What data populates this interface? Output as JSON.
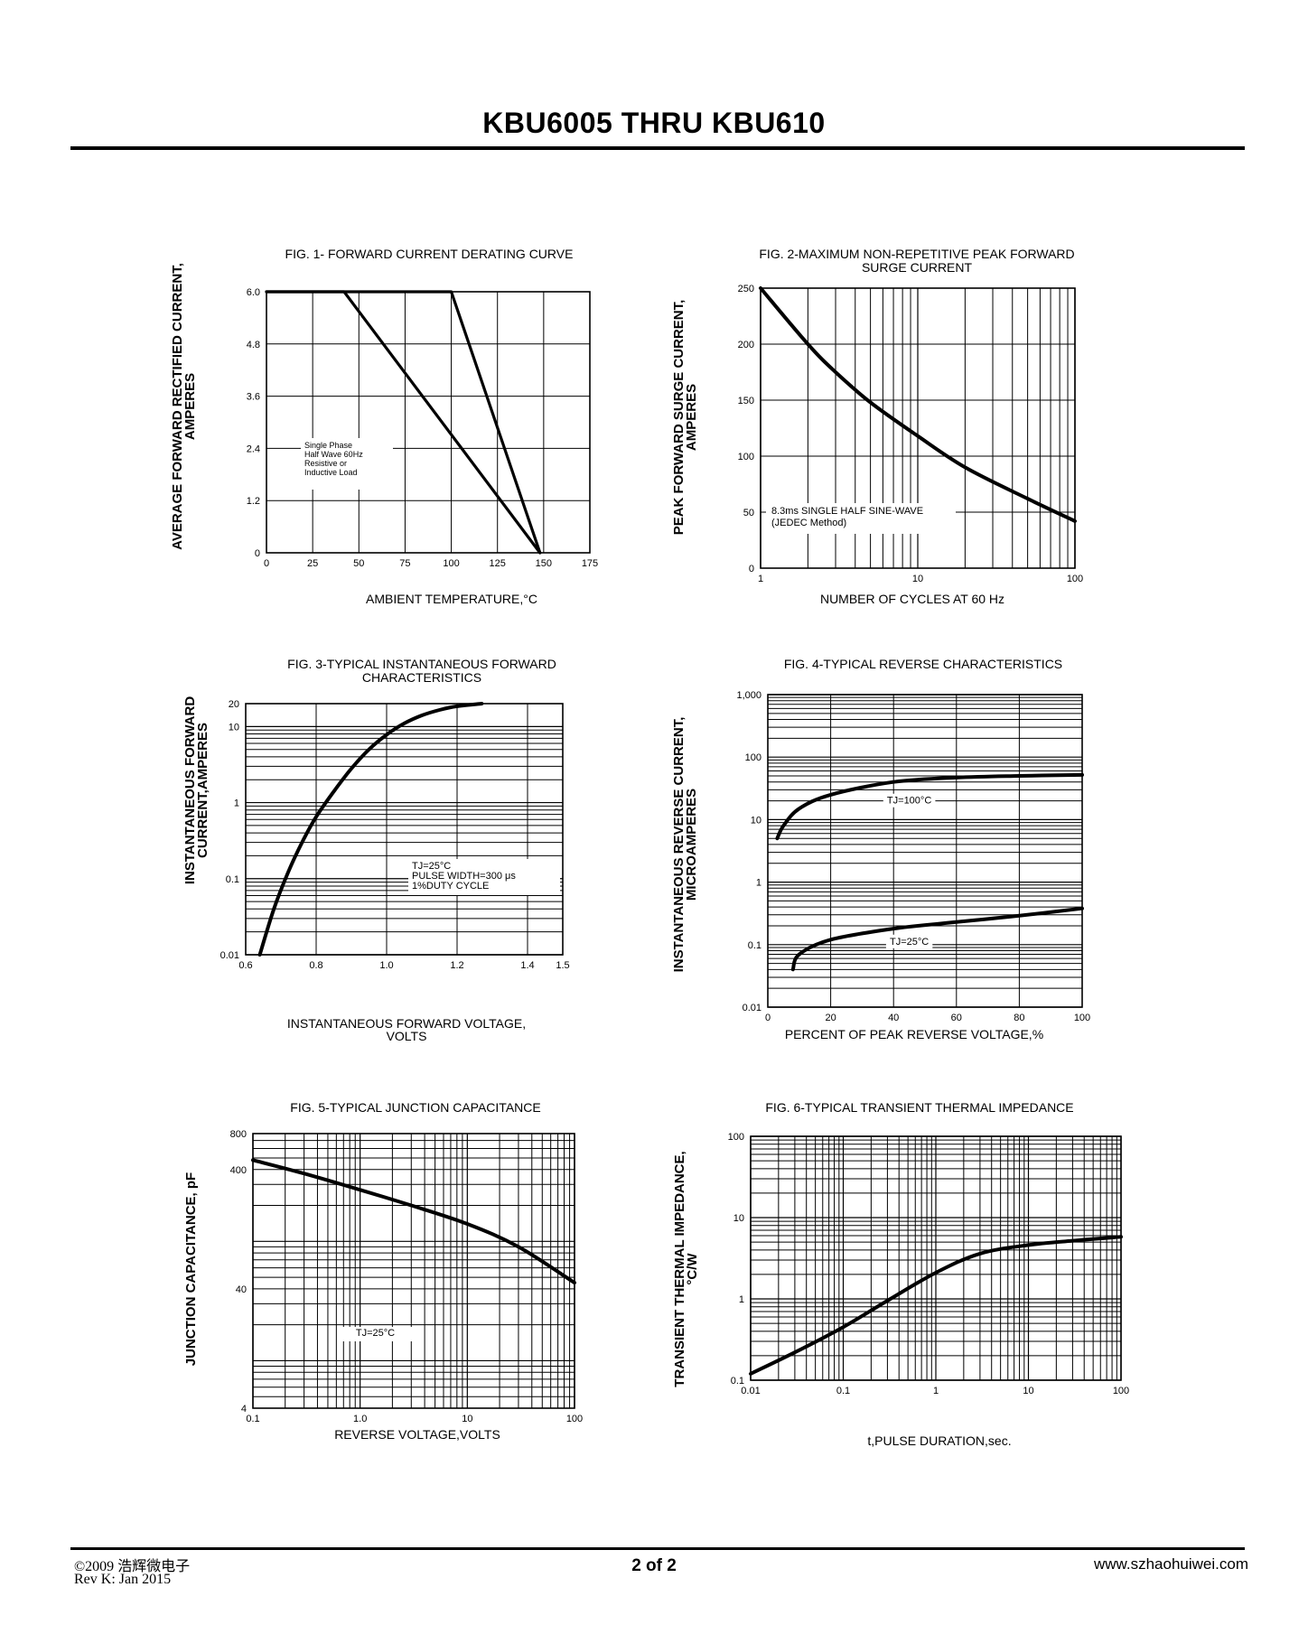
{
  "page": {
    "title": "KBU6005 THRU KBU610",
    "footer": {
      "copyright": "©2009 浩辉微电子",
      "revision": "Rev K:  Jan  2015",
      "page_number": "2  of  2",
      "website": "www.szhaohuiwei.com"
    }
  },
  "chart_data": [
    {
      "id": "fig1",
      "type": "line",
      "title": "FIG. 1- FORWARD CURRENT DERATING CURVE",
      "xlabel": "AMBIENT TEMPERATURE,°C",
      "ylabel": [
        "AVERAGE FORWARD RECTIFIED CURRENT,",
        "AMPERES"
      ],
      "x_scale": "linear",
      "y_scale": "linear",
      "xlim": [
        0,
        175
      ],
      "ylim": [
        0,
        6.0
      ],
      "xticks": [
        0,
        25,
        50,
        75,
        100,
        125,
        150,
        175
      ],
      "xticklabels": [
        "0",
        "25",
        "50",
        "75",
        "100",
        "125",
        "150",
        "175"
      ],
      "yticks": [
        0,
        1.2,
        2.4,
        3.6,
        4.8,
        6.0
      ],
      "yticklabels": [
        "0",
        "1.2",
        "2.4",
        "3.6",
        "4.8",
        "6.0"
      ],
      "annotation": [
        "Single Phase",
        "Half Wave 60Hz",
        "Resistive or",
        "Inductive Load"
      ],
      "series": [
        {
          "x": [
            0,
            42,
            148
          ],
          "y": [
            6.0,
            6.0,
            0
          ]
        },
        {
          "x": [
            0,
            100,
            148
          ],
          "y": [
            6.0,
            6.0,
            0
          ]
        }
      ]
    },
    {
      "id": "fig2",
      "type": "line",
      "title": [
        "FIG. 2-MAXIMUM NON-REPETITIVE PEAK FORWARD",
        "SURGE CURRENT"
      ],
      "xlabel": "NUMBER OF CYCLES AT 60 Hz",
      "ylabel": [
        "PEAK  FORWARD SURGE CURRENT,",
        "AMPERES"
      ],
      "x_scale": "log",
      "y_scale": "linear",
      "xlim": [
        1,
        100
      ],
      "ylim": [
        0,
        250
      ],
      "xticks": [
        1,
        10,
        100
      ],
      "xticklabels": [
        "1",
        "10",
        "100"
      ],
      "yticks": [
        0,
        50,
        100,
        150,
        200,
        250
      ],
      "yticklabels": [
        "0",
        "50",
        "100",
        "150",
        "200",
        "250"
      ],
      "annotation": [
        "8.3ms SINGLE HALF SINE-WAVE",
        "(JEDEC Method)"
      ],
      "series": [
        {
          "x": [
            1,
            2,
            3,
            5,
            10,
            20,
            50,
            100
          ],
          "y": [
            250,
            200,
            175,
            148,
            118,
            90,
            62,
            42
          ]
        }
      ]
    },
    {
      "id": "fig3",
      "type": "line",
      "title": [
        "FIG. 3-TYPICAL INSTANTANEOUS FORWARD",
        "CHARACTERISTICS"
      ],
      "xlabel": [
        "INSTANTANEOUS FORWARD VOLTAGE,",
        "VOLTS"
      ],
      "ylabel": [
        "INSTANTANEOUS FORWARD",
        "CURRENT,AMPERES"
      ],
      "x_scale": "linear",
      "y_scale": "log",
      "xlim": [
        0.6,
        1.5
      ],
      "ylim": [
        0.01,
        20
      ],
      "xticks": [
        0.6,
        0.8,
        1.0,
        1.2,
        1.4,
        1.5
      ],
      "xticklabels": [
        "0.6",
        "0.8",
        "1.0",
        "1.2",
        "1.4",
        "1.5"
      ],
      "yticks": [
        0.01,
        0.1,
        1,
        10,
        20
      ],
      "yticklabels": [
        "0.01",
        "0.1",
        "1",
        "10",
        "20"
      ],
      "annotation": [
        "TJ=25°C",
        "PULSE WIDTH=300 μs",
        "1%DUTY CYCLE"
      ],
      "series": [
        {
          "x": [
            0.64,
            0.68,
            0.72,
            0.76,
            0.8,
            0.85,
            0.9,
            0.95,
            1.0,
            1.05,
            1.1,
            1.15,
            1.2,
            1.27
          ],
          "y": [
            0.01,
            0.04,
            0.12,
            0.3,
            0.65,
            1.4,
            2.8,
            5,
            7.8,
            11,
            14,
            16.5,
            18.5,
            20
          ]
        }
      ]
    },
    {
      "id": "fig4",
      "type": "line",
      "title": "FIG. 4-TYPICAL REVERSE CHARACTERISTICS",
      "xlabel": "PERCENT OF PEAK REVERSE VOLTAGE,%",
      "ylabel": [
        "INSTANTANEOUS REVERSE CURRENT,",
        "MICROAMPERES"
      ],
      "x_scale": "linear",
      "y_scale": "log",
      "xlim": [
        0,
        100
      ],
      "ylim": [
        0.01,
        1000
      ],
      "xticks": [
        0,
        20,
        40,
        60,
        80,
        100
      ],
      "xticklabels": [
        "0",
        "20",
        "40",
        "60",
        "80",
        "100"
      ],
      "yticks": [
        0.01,
        0.1,
        1,
        10,
        100,
        1000
      ],
      "yticklabels": [
        "0.01",
        "0.1",
        "1",
        "10",
        "100",
        "1,000"
      ],
      "series": [
        {
          "name": "TJ=100°C",
          "x": [
            3,
            5,
            10,
            20,
            40,
            60,
            80,
            100
          ],
          "y": [
            5,
            8,
            15,
            25,
            40,
            47,
            50,
            52
          ]
        },
        {
          "name": "TJ=25°C",
          "x": [
            8,
            10,
            20,
            40,
            60,
            80,
            100
          ],
          "y": [
            0.04,
            0.07,
            0.12,
            0.18,
            0.23,
            0.29,
            0.38
          ]
        }
      ]
    },
    {
      "id": "fig5",
      "type": "line",
      "title": "FIG. 5-TYPICAL JUNCTION CAPACITANCE",
      "xlabel": "REVERSE VOLTAGE,VOLTS",
      "ylabel": "JUNCTION CAPACITANCE, pF",
      "x_scale": "log",
      "y_scale": "log",
      "xlim": [
        0.1,
        100
      ],
      "ylim": [
        4,
        800
      ],
      "xticks": [
        0.1,
        1,
        10,
        100
      ],
      "xticklabels": [
        "0.1",
        "1.0",
        "10",
        "100"
      ],
      "yticks": [
        4,
        40,
        400,
        800
      ],
      "yticklabels": [
        "4",
        "40",
        "400",
        "800"
      ],
      "annotation": "TJ=25°C",
      "series": [
        {
          "x": [
            0.1,
            0.3,
            1,
            3,
            10,
            30,
            100
          ],
          "y": [
            480,
            370,
            270,
            200,
            140,
            90,
            45
          ]
        }
      ]
    },
    {
      "id": "fig6",
      "type": "line",
      "title": "FIG. 6-TYPICAL TRANSIENT THERMAL IMPEDANCE",
      "xlabel": "t,PULSE DURATION,sec.",
      "ylabel": [
        "TRANSIENT THERMAL IMPEDANCE,",
        "°C/W"
      ],
      "x_scale": "log",
      "y_scale": "log",
      "xlim": [
        0.01,
        100
      ],
      "ylim": [
        0.1,
        100
      ],
      "xticks": [
        0.01,
        0.1,
        1,
        10,
        100
      ],
      "xticklabels": [
        "0.01",
        "0.1",
        "1",
        "10",
        "100"
      ],
      "yticks": [
        0.1,
        1,
        10,
        100
      ],
      "yticklabels": [
        "0.1",
        "1",
        "10",
        "100"
      ],
      "series": [
        {
          "x": [
            0.01,
            0.03,
            0.1,
            0.3,
            1,
            3,
            10,
            30,
            100
          ],
          "y": [
            0.12,
            0.22,
            0.45,
            0.95,
            2.1,
            3.6,
            4.6,
            5.2,
            5.8
          ]
        }
      ]
    }
  ]
}
